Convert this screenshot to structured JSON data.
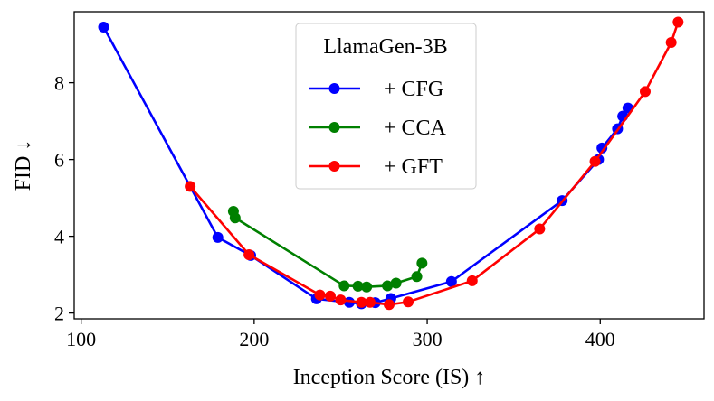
{
  "chart_data": {
    "type": "line",
    "title": "",
    "xlabel": "Inception Score (IS) ↑",
    "ylabel": "FID ↓",
    "xlim": [
      96,
      460
    ],
    "ylim": [
      1.85,
      9.85
    ],
    "xticks": [
      100,
      200,
      300,
      400
    ],
    "yticks": [
      2,
      4,
      6,
      8
    ],
    "grid": false,
    "legend_title": "LlamaGen-3B",
    "legend_position": "top-center",
    "series": [
      {
        "name": "+ CFG",
        "color": "#0000ff",
        "points": [
          [
            113,
            9.45
          ],
          [
            179,
            3.97
          ],
          [
            198,
            3.5
          ],
          [
            236,
            2.37
          ],
          [
            255,
            2.28
          ],
          [
            262,
            2.24
          ],
          [
            270,
            2.27
          ],
          [
            279,
            2.38
          ],
          [
            314,
            2.82
          ],
          [
            378,
            4.93
          ],
          [
            399,
            6.0
          ],
          [
            401,
            6.3
          ],
          [
            410,
            6.8
          ],
          [
            413,
            7.13
          ],
          [
            416,
            7.34
          ]
        ]
      },
      {
        "name": "+ CCA",
        "color": "#008000",
        "points": [
          [
            188,
            4.65
          ],
          [
            189,
            4.48
          ],
          [
            252,
            2.71
          ],
          [
            260,
            2.7
          ],
          [
            265,
            2.68
          ],
          [
            277,
            2.71
          ],
          [
            282,
            2.78
          ],
          [
            294,
            2.95
          ],
          [
            297,
            3.3
          ]
        ]
      },
      {
        "name": "+ GFT",
        "color": "#ff0000",
        "points": [
          [
            163,
            5.3
          ],
          [
            197,
            3.52
          ],
          [
            238,
            2.47
          ],
          [
            244,
            2.44
          ],
          [
            250,
            2.34
          ],
          [
            262,
            2.28
          ],
          [
            267,
            2.28
          ],
          [
            278,
            2.22
          ],
          [
            289,
            2.29
          ],
          [
            326,
            2.84
          ],
          [
            365,
            4.19
          ],
          [
            397,
            5.95
          ],
          [
            426,
            7.77
          ],
          [
            441,
            9.05
          ],
          [
            445,
            9.58
          ]
        ]
      }
    ]
  }
}
